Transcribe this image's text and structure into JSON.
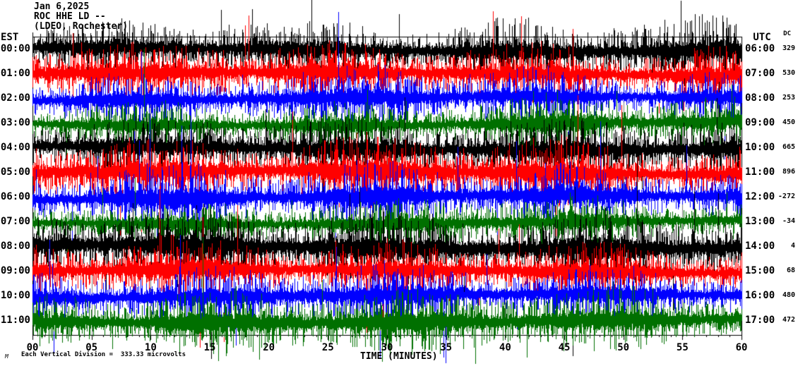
{
  "title": {
    "date": "Jan 6,2025",
    "station": "ROC HHE LD --",
    "location": "(LDEO, Rochester)"
  },
  "axes": {
    "left_header": "EST",
    "right_header": "UTC",
    "dc_header": "DC",
    "x_title": "TIME (MINUTES)",
    "x_tick_labels": [
      "00",
      "05",
      "10",
      "15",
      "20",
      "25",
      "30",
      "35",
      "40",
      "45",
      "50",
      "55",
      "60"
    ],
    "x_range_minutes": [
      0,
      60
    ],
    "gridline_minutes": [
      5,
      10,
      15,
      20,
      25,
      30,
      35,
      40,
      45,
      50,
      55
    ],
    "grid_color": "#808080",
    "frame_color": "#000000"
  },
  "footer": {
    "scale_note": "Each Vertical Division =  333.33 microvolts",
    "watermark": "M"
  },
  "colors": {
    "black": "#000000",
    "red": "#ff0000",
    "blue": "#0000ff",
    "green": "#007000"
  },
  "chart_data": {
    "type": "line",
    "subtype": "helicorder-seismogram",
    "title": "ROC HHE LD -- (LDEO, Rochester) Jan 6,2025",
    "xlabel": "TIME (MINUTES)",
    "x_range": [
      0,
      60
    ],
    "rows_are": "one hour of seismic trace per row, colors cycle black/red/blue/green",
    "vertical_division_microvolts": 333.33,
    "rows": [
      {
        "est": "00:00",
        "utc": "06:00",
        "dc": 329,
        "color": "black",
        "amp": 15,
        "seed": 11,
        "env": [
          1,
          1,
          1,
          1.2,
          1.1,
          1,
          1.1,
          1,
          1.3,
          1.1,
          1.4,
          1.3,
          1.2
        ]
      },
      {
        "est": "01:00",
        "utc": "07:00",
        "dc": 530,
        "color": "red",
        "amp": 15,
        "seed": 22,
        "env": [
          1.2,
          1,
          1.2,
          1.5,
          1,
          1.1,
          1.2,
          1.1,
          1,
          1.2,
          1,
          1.1,
          1
        ]
      },
      {
        "est": "02:00",
        "utc": "08:00",
        "dc": 253,
        "color": "blue",
        "amp": 14,
        "seed": 33,
        "env": [
          1,
          1,
          1,
          1,
          1.1,
          1,
          1.6,
          1.2,
          1,
          1.2,
          1,
          1,
          1
        ]
      },
      {
        "est": "03:00",
        "utc": "09:00",
        "dc": 450,
        "color": "green",
        "amp": 13,
        "seed": 44,
        "env": [
          0.9,
          0.9,
          1,
          1,
          1,
          1,
          1,
          1,
          1.2,
          1.4,
          1.2,
          1.3,
          1
        ]
      },
      {
        "est": "04:00",
        "utc": "10:00",
        "dc": 665,
        "color": "black",
        "amp": 15,
        "seed": 55,
        "env": [
          1,
          1.1,
          1,
          1.2,
          1.3,
          1.2,
          1.3,
          1.2,
          1.1,
          1.2,
          1.3,
          1.2,
          1.1
        ]
      },
      {
        "est": "05:00",
        "utc": "11:00",
        "dc": 896,
        "color": "red",
        "amp": 16,
        "seed": 66,
        "env": [
          1.4,
          1.2,
          1.1,
          1.2,
          1.1,
          1.2,
          1.3,
          1.4,
          1.3,
          1.2,
          1.1,
          1,
          1
        ]
      },
      {
        "est": "06:00",
        "utc": "12:00",
        "dc": -272,
        "color": "blue",
        "amp": 15,
        "seed": 77,
        "env": [
          1,
          1,
          1.3,
          1.4,
          1.1,
          1.2,
          1.3,
          1.2,
          1.1,
          1.2,
          1.1,
          1.1,
          1
        ]
      },
      {
        "est": "07:00",
        "utc": "13:00",
        "dc": -34,
        "color": "green",
        "amp": 13,
        "seed": 88,
        "env": [
          0.8,
          0.9,
          0.9,
          1,
          1,
          1,
          1,
          1.4,
          1.2,
          1,
          1,
          1,
          0.9
        ]
      },
      {
        "est": "08:00",
        "utc": "14:00",
        "dc": 4,
        "color": "black",
        "amp": 17,
        "seed": 99,
        "env": [
          1.3,
          1.3,
          1.2,
          1.4,
          1.3,
          1.3,
          1.2,
          1.3,
          1.2,
          1.2,
          1.3,
          1.2,
          1.2
        ]
      },
      {
        "est": "09:00",
        "utc": "15:00",
        "dc": 68,
        "color": "red",
        "amp": 15,
        "seed": 110,
        "env": [
          1.1,
          1.1,
          1.3,
          1.2,
          1.1,
          1,
          1.1,
          1,
          1.1,
          1.2,
          1.1,
          1,
          1
        ]
      },
      {
        "est": "10:00",
        "utc": "16:00",
        "dc": 480,
        "color": "blue",
        "amp": 15,
        "seed": 121,
        "env": [
          1,
          1.1,
          1,
          1.1,
          1.2,
          1.3,
          1.2,
          1.1,
          1,
          1.1,
          1,
          1,
          1
        ]
      },
      {
        "est": "11:00",
        "utc": "17:00",
        "dc": 472,
        "color": "green",
        "amp": 15,
        "seed": 132,
        "env": [
          1,
          1.2,
          1.1,
          1.3,
          1.2,
          1.4,
          1.3,
          1.2,
          1.3,
          1.4,
          1.2,
          1.1,
          1
        ]
      }
    ]
  }
}
